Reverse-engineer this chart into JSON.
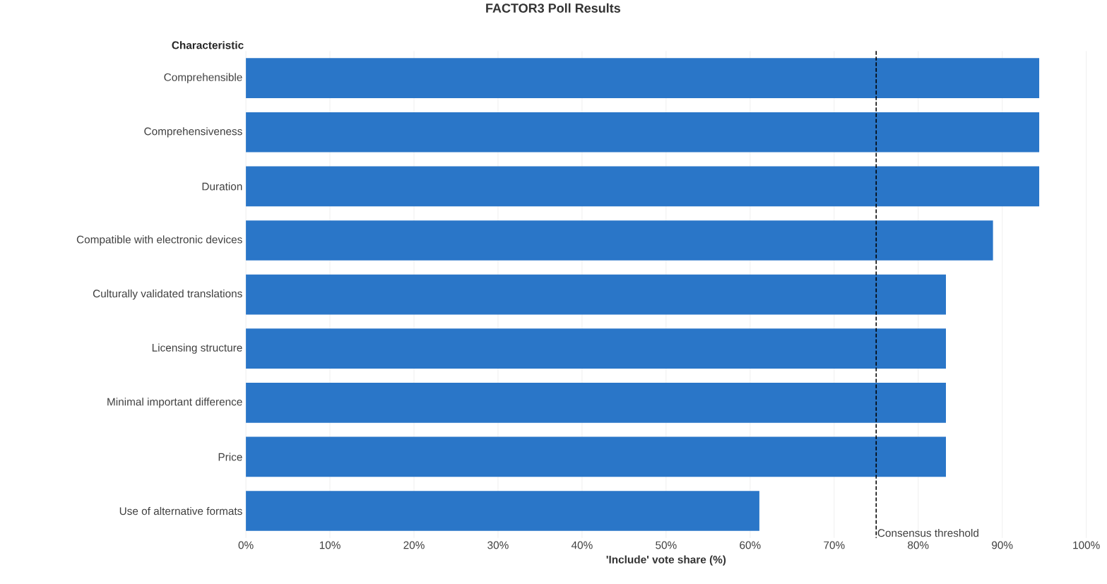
{
  "chart_data": {
    "type": "bar",
    "orientation": "horizontal",
    "title": "FACTOR3 Poll Results",
    "ylabel": "Characteristic",
    "xlabel": "'Include' vote share (%)",
    "categories": [
      "Comprehensible",
      "Comprehensiveness",
      "Duration",
      "Compatible with electronic devices",
      "Culturally validated translations",
      "Licensing structure",
      "Minimal important difference",
      "Price",
      "Use of alternative formats"
    ],
    "values": [
      94.4,
      94.4,
      94.4,
      88.9,
      83.3,
      83.3,
      83.3,
      83.3,
      61.1
    ],
    "color": "#2a76c8",
    "xlim": [
      0,
      100
    ],
    "xticks": [
      {
        "value": 0,
        "label": "0%"
      },
      {
        "value": 10,
        "label": "10%"
      },
      {
        "value": 20,
        "label": "20%"
      },
      {
        "value": 30,
        "label": "30%"
      },
      {
        "value": 40,
        "label": "40%"
      },
      {
        "value": 50,
        "label": "50%"
      },
      {
        "value": 60,
        "label": "60%"
      },
      {
        "value": 70,
        "label": "70%"
      },
      {
        "value": 80,
        "label": "80%"
      },
      {
        "value": 90,
        "label": "90%"
      },
      {
        "value": 100,
        "label": "100%"
      }
    ],
    "grid": "x",
    "ref_lines": [
      {
        "axis": "x",
        "value": 75,
        "label": "Consensus threshold",
        "color": "#000000",
        "line_style": "dashed"
      }
    ]
  }
}
